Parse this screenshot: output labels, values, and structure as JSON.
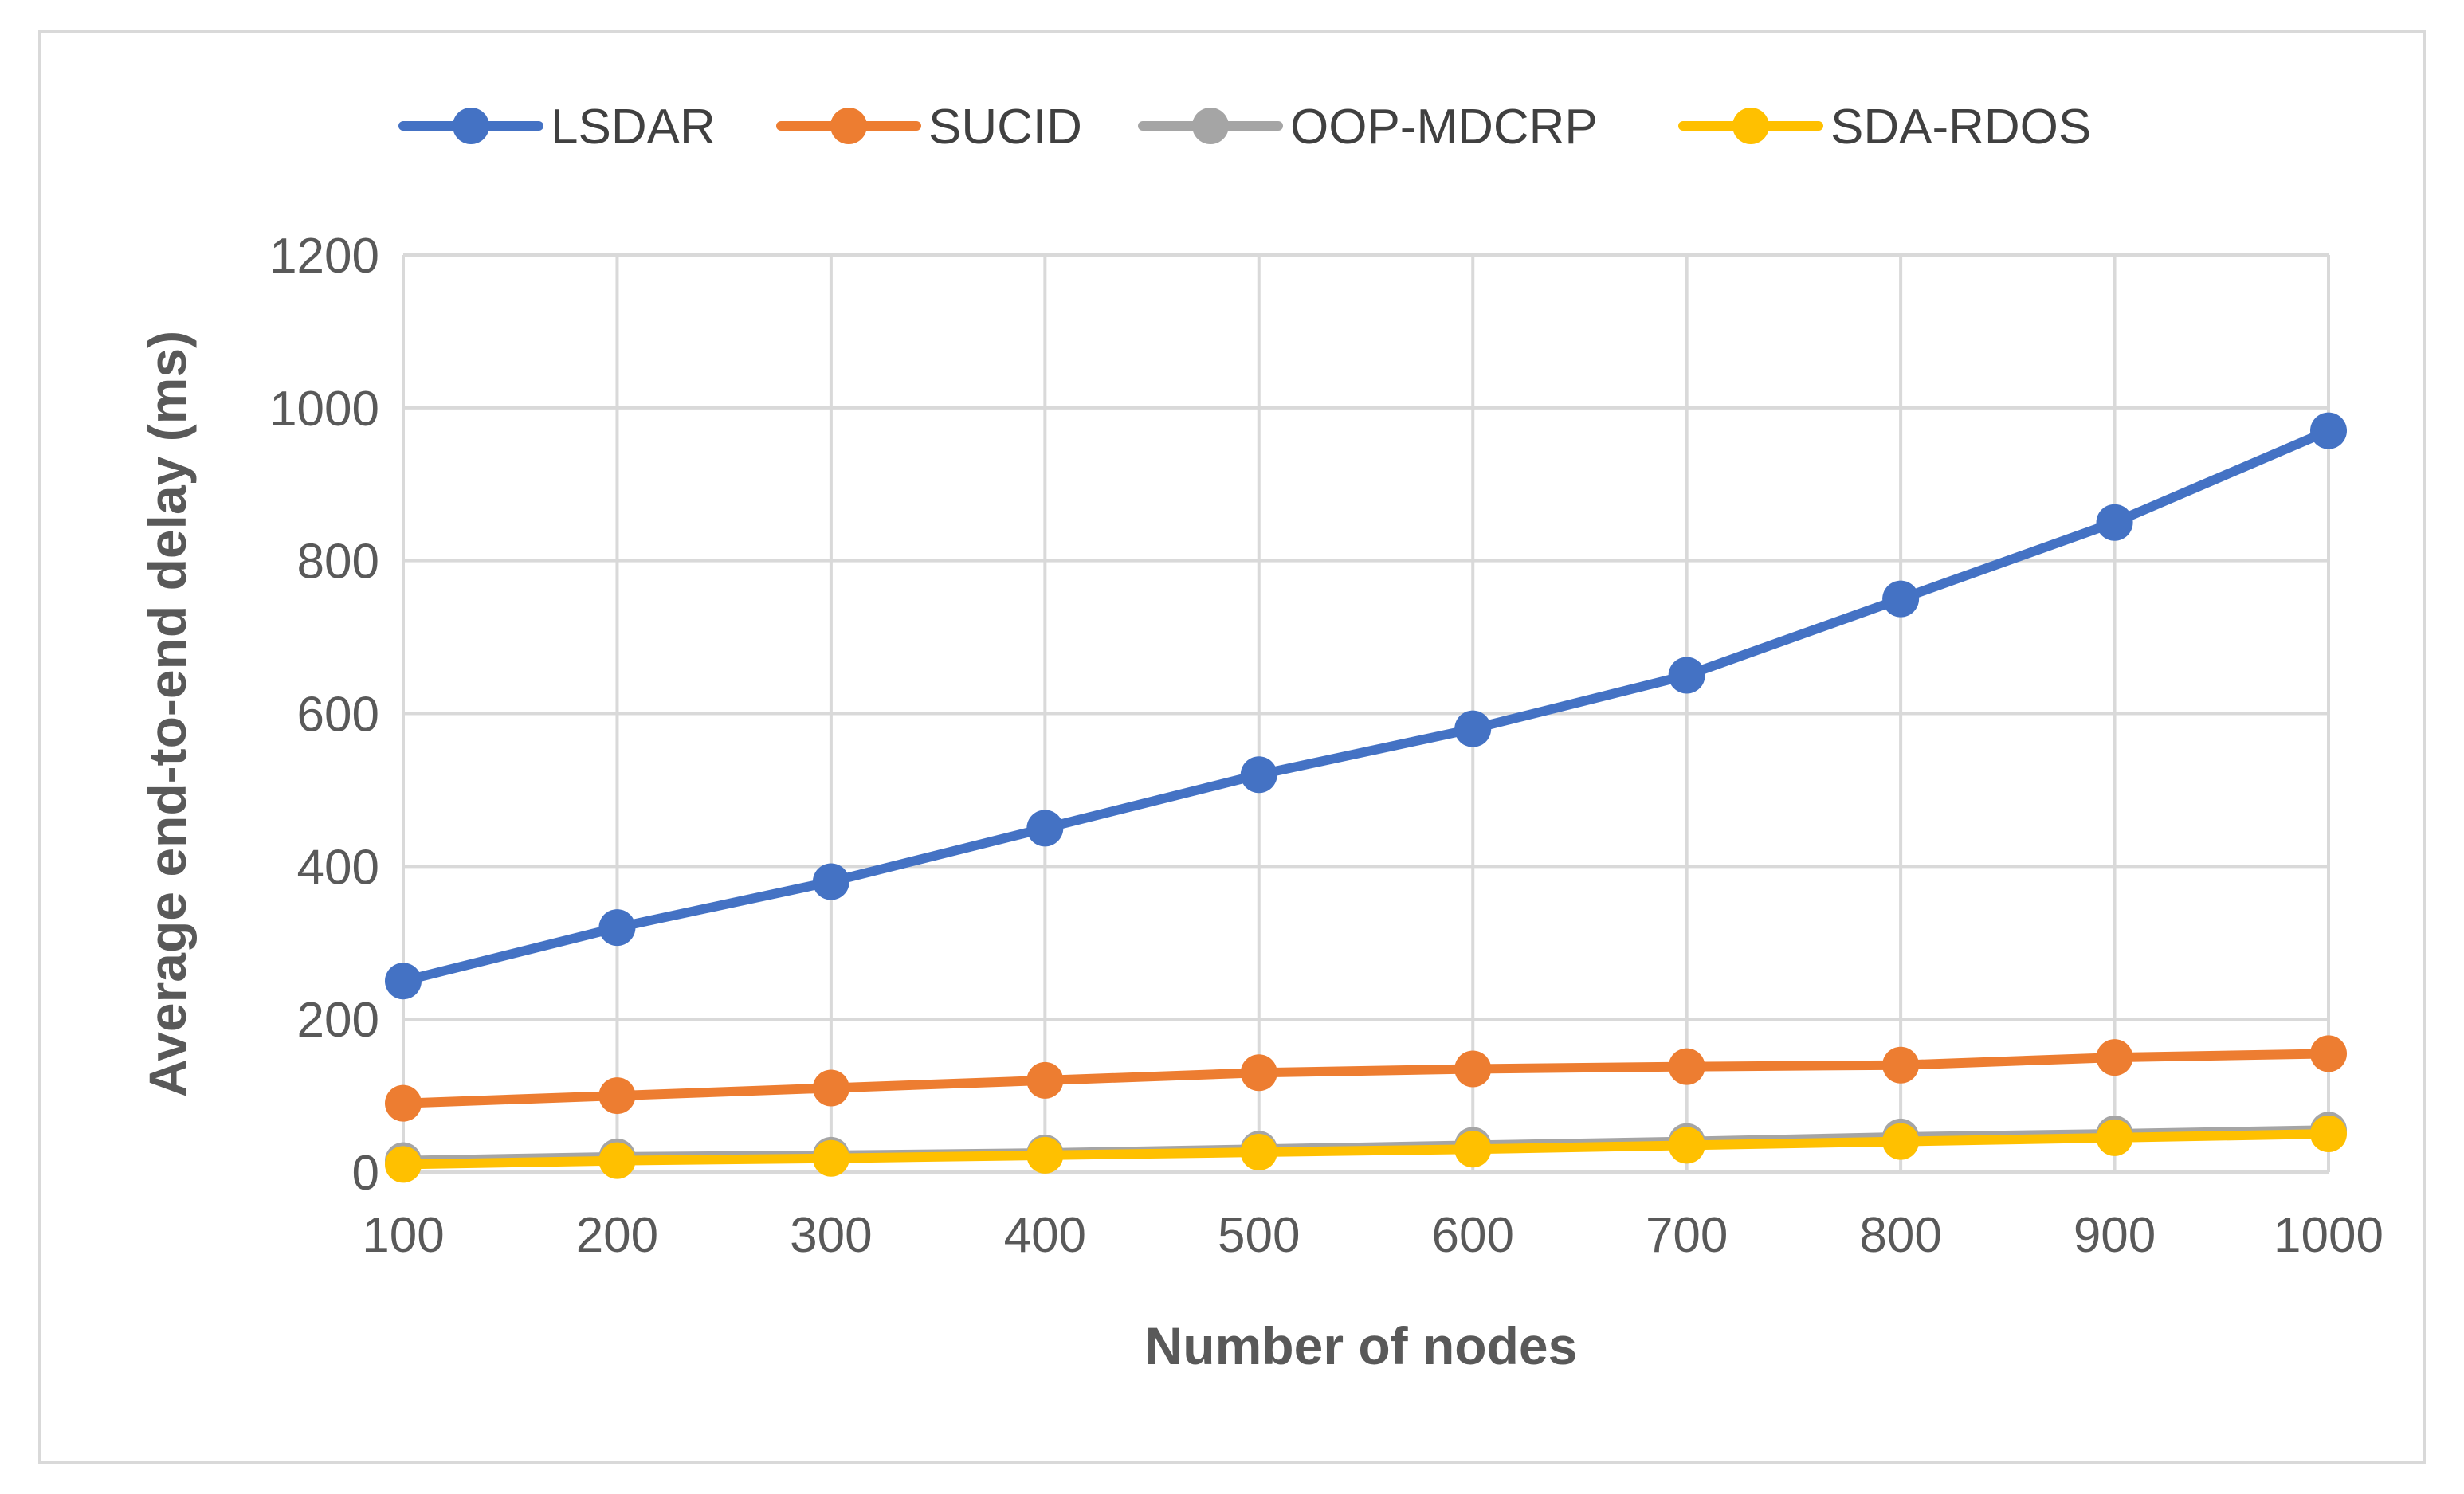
{
  "chart_data": {
    "type": "line",
    "title": "",
    "xlabel": "Number of nodes",
    "ylabel": "Average end-to-end delay (ms)",
    "categories": [
      "100",
      "200",
      "300",
      "400",
      "500",
      "600",
      "700",
      "800",
      "900",
      "1000"
    ],
    "ylim": [
      0,
      1200
    ],
    "yticks": [
      "0",
      "200",
      "400",
      "600",
      "800",
      "1000",
      "1200"
    ],
    "grid": true,
    "legend_position": "top",
    "series": [
      {
        "name": "LSDAR",
        "color": "#4472C4",
        "values": [
          250,
          320,
          380,
          450,
          520,
          580,
          650,
          750,
          850,
          970
        ]
      },
      {
        "name": "SUCID",
        "color": "#ED7D31",
        "values": [
          90,
          100,
          110,
          120,
          130,
          135,
          138,
          140,
          150,
          155
        ]
      },
      {
        "name": "OOP-MDCRP",
        "color": "#A5A5A5",
        "values": [
          15,
          20,
          22,
          25,
          30,
          35,
          40,
          46,
          50,
          55
        ]
      },
      {
        "name": "SDA-RDOS",
        "color": "#FFC000",
        "values": [
          10,
          15,
          18,
          22,
          26,
          30,
          35,
          40,
          45,
          50
        ]
      }
    ]
  }
}
